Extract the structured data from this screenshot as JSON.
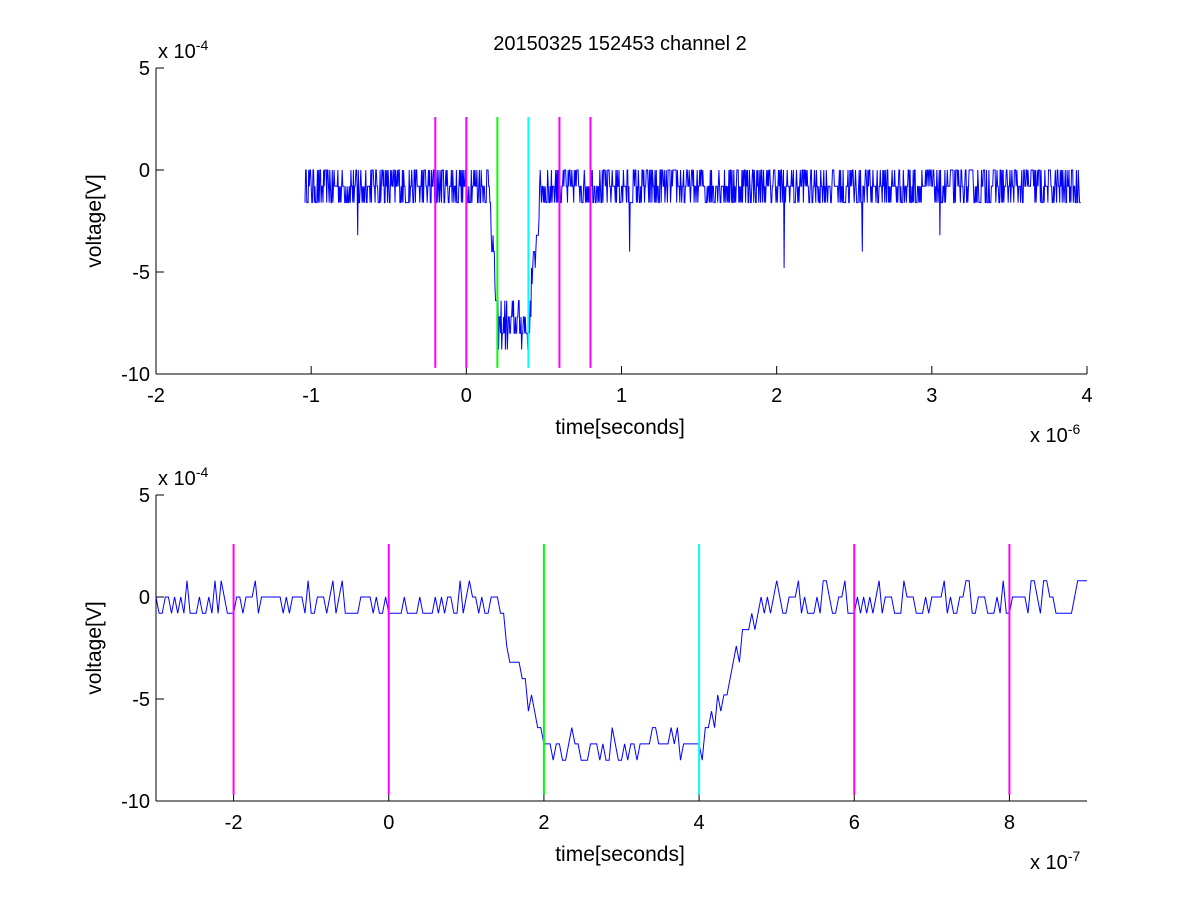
{
  "figure": {
    "title": "20150325 152453 channel 2"
  },
  "colors": {
    "signal": "#0000FF",
    "marker_magenta": "#FF00FF",
    "marker_green": "#00FF00",
    "marker_cyan": "#00FFFF",
    "axes": "#000000",
    "background": "#FFFFFF"
  },
  "chart_data": [
    {
      "type": "line",
      "xlabel": "time[seconds]",
      "ylabel": "voltage[V]",
      "x_exponent_label": "x 10",
      "x_exponent_power": "-6",
      "y_exponent_label": "x 10",
      "y_exponent_power": "-4",
      "xlim": [
        -2e-06,
        4e-06
      ],
      "ylim": [
        -0.001,
        0.0005
      ],
      "xticks": [
        -2,
        -1,
        0,
        1,
        2,
        3,
        4
      ],
      "yticks": [
        5,
        0,
        -5,
        -10
      ],
      "grid": false,
      "box": false,
      "markers": [
        {
          "x": -2e-07,
          "color": "magenta"
        },
        {
          "x": 0,
          "color": "magenta"
        },
        {
          "x": 2e-07,
          "color": "green"
        },
        {
          "x": 4e-07,
          "color": "cyan"
        },
        {
          "x": 6e-07,
          "color": "magenta"
        },
        {
          "x": 8e-07,
          "color": "magenta"
        }
      ],
      "marker_ylim": [
        -0.00097,
        0.00026
      ],
      "series": [
        {
          "values_from_trace": true,
          "trace_x_range": [
            -1.04e-06,
            3.96e-06
          ],
          "trace_step": 4e-09,
          "pulse": {
            "start": 1.5e-07,
            "fall_end": 2e-07,
            "rise_start": 4e-07,
            "end": 4.8e-07
          },
          "baseline": -8e-05,
          "level_low": -0.00076,
          "noise": 0.00011,
          "outliers": [
            {
              "x": 1.05e-06,
              "y": -0.0004
            },
            {
              "x": 2.05e-06,
              "y": -0.00048
            },
            {
              "x": 2.55e-06,
              "y": -0.0004
            },
            {
              "x": -7e-07,
              "y": -0.00032
            },
            {
              "x": 3.05e-06,
              "y": -0.00032
            }
          ]
        }
      ]
    },
    {
      "type": "line",
      "xlabel": "time[seconds]",
      "ylabel": "voltage[V]",
      "x_exponent_label": "x 10",
      "x_exponent_power": "-7",
      "y_exponent_label": "x 10",
      "y_exponent_power": "-4",
      "xlim": [
        -3e-07,
        9e-07
      ],
      "ylim": [
        -0.001,
        0.0005
      ],
      "xticks": [
        -2,
        0,
        2,
        4,
        6,
        8
      ],
      "yticks": [
        5,
        0,
        -5,
        -10
      ],
      "grid": false,
      "box": false,
      "markers": [
        {
          "x": -2e-07,
          "color": "magenta"
        },
        {
          "x": 0,
          "color": "magenta"
        },
        {
          "x": 2e-07,
          "color": "green"
        },
        {
          "x": 4e-07,
          "color": "cyan"
        },
        {
          "x": 6e-07,
          "color": "magenta"
        },
        {
          "x": 8e-07,
          "color": "magenta"
        }
      ],
      "marker_ylim": [
        -0.00097,
        0.00026
      ],
      "series": [
        {
          "values_from_trace": true,
          "trace_x_range": [
            -3e-07,
            9e-07
          ],
          "trace_step": 4e-09,
          "pulse": {
            "start": 1.4e-07,
            "fall_end": 2e-07,
            "rise_start": 4e-07,
            "end": 4.8e-07
          },
          "baseline": -2e-05,
          "level_low": -0.00074,
          "noise": 8e-05,
          "outliers": []
        }
      ]
    }
  ]
}
